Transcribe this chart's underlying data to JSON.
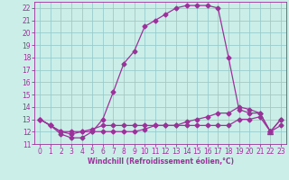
{
  "xlabel": "Windchill (Refroidissement éolien,°C)",
  "background_color": "#cceee8",
  "grid_color": "#99cccc",
  "line_color": "#993399",
  "xlim": [
    -0.5,
    23.5
  ],
  "ylim": [
    11,
    22.5
  ],
  "xticks": [
    0,
    1,
    2,
    3,
    4,
    5,
    6,
    7,
    8,
    9,
    10,
    11,
    12,
    13,
    14,
    15,
    16,
    17,
    18,
    19,
    20,
    21,
    22,
    23
  ],
  "yticks": [
    11,
    12,
    13,
    14,
    15,
    16,
    17,
    18,
    19,
    20,
    21,
    22
  ],
  "hours": [
    0,
    1,
    2,
    3,
    4,
    5,
    6,
    7,
    8,
    9,
    10,
    11,
    12,
    13,
    14,
    15,
    16,
    17,
    18,
    19,
    20,
    21,
    22,
    23
  ],
  "windchill": [
    13.0,
    12.5,
    11.8,
    11.5,
    11.5,
    12.0,
    13.0,
    15.2,
    17.5,
    18.5,
    20.5,
    21.0,
    21.5,
    22.0,
    22.2,
    22.2,
    22.2,
    22.0,
    18.0,
    13.8,
    13.5,
    13.5,
    12.0,
    13.0
  ],
  "apparent_temp": [
    13.0,
    12.5,
    12.0,
    11.8,
    12.0,
    12.2,
    12.5,
    12.5,
    12.5,
    12.5,
    12.5,
    12.5,
    12.5,
    12.5,
    12.8,
    13.0,
    13.2,
    13.5,
    13.5,
    14.0,
    13.8,
    13.5,
    12.0,
    13.0
  ],
  "temp": [
    13.0,
    12.5,
    12.0,
    12.0,
    12.0,
    12.0,
    12.0,
    12.0,
    12.0,
    12.0,
    12.2,
    12.5,
    12.5,
    12.5,
    12.5,
    12.5,
    12.5,
    12.5,
    12.5,
    13.0,
    13.0,
    13.2,
    12.0,
    12.5
  ]
}
